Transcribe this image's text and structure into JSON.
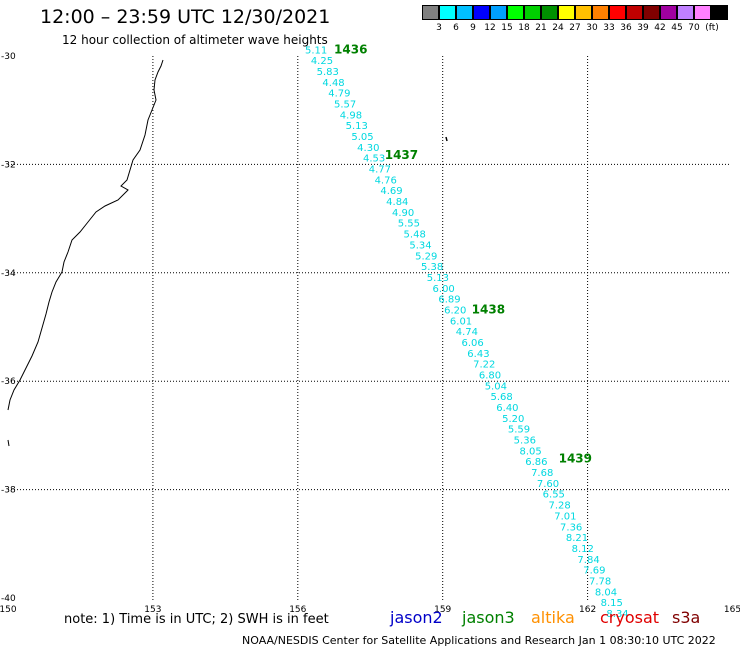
{
  "title": "12:00 – 23:59 UTC 12/30/2021",
  "subtitle": "12 hour collection of altimeter wave heights",
  "legend": {
    "colors": [
      "#808080",
      "#00ffff",
      "#00c0ff",
      "#0000ff",
      "#00a0ff",
      "#00ff00",
      "#00d000",
      "#009000",
      "#ffff00",
      "#ffc000",
      "#ff8000",
      "#ff0000",
      "#c00000",
      "#800000",
      "#a000a0",
      "#c080ff",
      "#ff80ff",
      "#000000"
    ],
    "labels": [
      "3",
      "6",
      "9",
      "12",
      "15",
      "18",
      "21",
      "24",
      "27",
      "30",
      "33",
      "36",
      "39",
      "42",
      "45",
      "70"
    ],
    "unit": "(ft)"
  },
  "map": {
    "lon_ticks": [
      "150",
      "153",
      "156",
      "159",
      "162",
      "165"
    ],
    "lat_ticks": [
      "-30",
      "-32",
      "-34",
      "-36",
      "-38",
      "-40"
    ],
    "track_color": "#00d8e0",
    "pass_label_color": "#008000",
    "passes": [
      {
        "label": "1436",
        "lon": 156.75,
        "lat": -29.95
      },
      {
        "label": "1437",
        "lon": 157.8,
        "lat": -31.9
      },
      {
        "label": "1438",
        "lon": 159.6,
        "lat": -34.75
      },
      {
        "label": "1439",
        "lon": 161.4,
        "lat": -37.5
      }
    ],
    "track": [
      {
        "v": "5.11",
        "lon": 156.38,
        "lat": -29.95
      },
      {
        "v": "4.25",
        "lon": 156.5,
        "lat": -30.15
      },
      {
        "v": "5.83",
        "lon": 156.62,
        "lat": -30.35
      },
      {
        "v": "4.48",
        "lon": 156.74,
        "lat": -30.55
      },
      {
        "v": "4.79",
        "lon": 156.86,
        "lat": -30.75
      },
      {
        "v": "5.57",
        "lon": 156.98,
        "lat": -30.95
      },
      {
        "v": "4.98",
        "lon": 157.1,
        "lat": -31.15
      },
      {
        "v": "5.13",
        "lon": 157.22,
        "lat": -31.35
      },
      {
        "v": "5.05",
        "lon": 157.34,
        "lat": -31.55
      },
      {
        "v": "4.30",
        "lon": 157.46,
        "lat": -31.75
      },
      {
        "v": "4.53",
        "lon": 157.58,
        "lat": -31.95
      },
      {
        "v": "4.77",
        "lon": 157.7,
        "lat": -32.15
      },
      {
        "v": "4.76",
        "lon": 157.82,
        "lat": -32.35
      },
      {
        "v": "4.69",
        "lon": 157.94,
        "lat": -32.55
      },
      {
        "v": "4.84",
        "lon": 158.06,
        "lat": -32.75
      },
      {
        "v": "4.90",
        "lon": 158.18,
        "lat": -32.95
      },
      {
        "v": "5.55",
        "lon": 158.3,
        "lat": -33.15
      },
      {
        "v": "5.48",
        "lon": 158.42,
        "lat": -33.35
      },
      {
        "v": "5.34",
        "lon": 158.54,
        "lat": -33.55
      },
      {
        "v": "5.29",
        "lon": 158.66,
        "lat": -33.75
      },
      {
        "v": "5.38",
        "lon": 158.78,
        "lat": -33.95
      },
      {
        "v": "5.13",
        "lon": 158.9,
        "lat": -34.15
      },
      {
        "v": "6.00",
        "lon": 159.02,
        "lat": -34.35
      },
      {
        "v": "6.89",
        "lon": 159.14,
        "lat": -34.55
      },
      {
        "v": "6.20",
        "lon": 159.26,
        "lat": -34.75
      },
      {
        "v": "6.01",
        "lon": 159.38,
        "lat": -34.95
      },
      {
        "v": "4.74",
        "lon": 159.5,
        "lat": -35.15
      },
      {
        "v": "6.06",
        "lon": 159.62,
        "lat": -35.35
      },
      {
        "v": "6.43",
        "lon": 159.74,
        "lat": -35.55
      },
      {
        "v": "7.22",
        "lon": 159.86,
        "lat": -35.75
      },
      {
        "v": "6.80",
        "lon": 159.98,
        "lat": -35.95
      },
      {
        "v": "5.04",
        "lon": 160.1,
        "lat": -36.15
      },
      {
        "v": "5.68",
        "lon": 160.22,
        "lat": -36.35
      },
      {
        "v": "6.40",
        "lon": 160.34,
        "lat": -36.55
      },
      {
        "v": "5.20",
        "lon": 160.46,
        "lat": -36.75
      },
      {
        "v": "5.59",
        "lon": 160.58,
        "lat": -36.95
      },
      {
        "v": "5.36",
        "lon": 160.7,
        "lat": -37.15
      },
      {
        "v": "8.05",
        "lon": 160.82,
        "lat": -37.35
      },
      {
        "v": "6.86",
        "lon": 160.94,
        "lat": -37.55
      },
      {
        "v": "7.68",
        "lon": 161.06,
        "lat": -37.75
      },
      {
        "v": "7.60",
        "lon": 161.18,
        "lat": -37.95
      },
      {
        "v": "6.55",
        "lon": 161.3,
        "lat": -38.15
      },
      {
        "v": "7.28",
        "lon": 161.42,
        "lat": -38.35
      },
      {
        "v": "7.01",
        "lon": 161.54,
        "lat": -38.55
      },
      {
        "v": "7.36",
        "lon": 161.66,
        "lat": -38.75
      },
      {
        "v": "8.21",
        "lon": 161.78,
        "lat": -38.95
      },
      {
        "v": "8.12",
        "lon": 161.9,
        "lat": -39.15
      },
      {
        "v": "7.84",
        "lon": 162.02,
        "lat": -39.35
      },
      {
        "v": "7.69",
        "lon": 162.14,
        "lat": -39.55
      },
      {
        "v": "7.78",
        "lon": 162.26,
        "lat": -39.75
      },
      {
        "v": "8.04",
        "lon": 162.38,
        "lat": -39.95
      },
      {
        "v": "8.15",
        "lon": 162.5,
        "lat": -40.15
      },
      {
        "v": "8.34",
        "lon": 162.62,
        "lat": -40.35
      }
    ]
  },
  "note": "note:  1) Time is in UTC;  2) SWH is in feet",
  "satellites": [
    {
      "name": "jason2",
      "color": "#0000c8"
    },
    {
      "name": "jason3",
      "color": "#008000"
    },
    {
      "name": "altika",
      "color": "#ff9000"
    },
    {
      "name": "cryosat",
      "color": "#e00000"
    },
    {
      "name": "s3a",
      "color": "#800000"
    }
  ],
  "credit": "NOAA/NESDIS Center for Satellite Applications and Research    Jan  1 08:30:10 UTC 2022"
}
